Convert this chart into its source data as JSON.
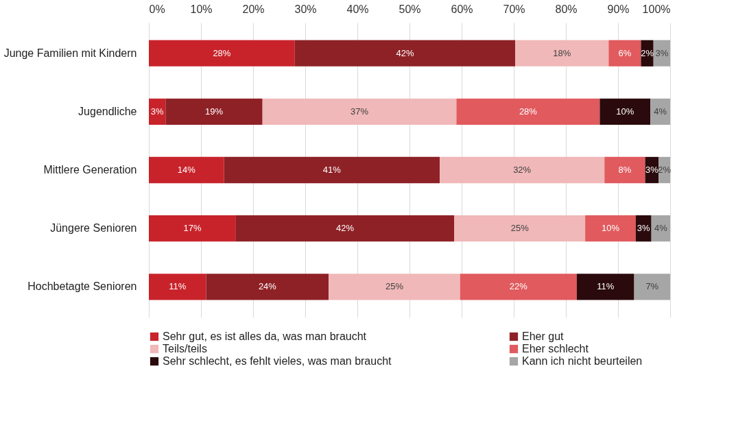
{
  "chart_data": {
    "type": "bar",
    "orientation": "horizontal",
    "stacked": true,
    "categories": [
      "Junge Familien mit Kindern",
      "Jugendliche",
      "Mittlere Generation",
      "Jüngere Senioren",
      "Hochbetagte Senioren"
    ],
    "series": [
      {
        "name": "Sehr gut, es ist alles da, was man braucht",
        "color": "#c8232b",
        "values": [
          28.0,
          3.2,
          14.4,
          16.7,
          11.0
        ],
        "value_labels": [
          "28%",
          "3%",
          "14%",
          "17%",
          "11%"
        ]
      },
      {
        "name": "Eher gut",
        "color": "#8e2126",
        "values": [
          42.3,
          18.6,
          41.4,
          41.9,
          23.5
        ],
        "value_labels": [
          "42%",
          "19%",
          "41%",
          "42%",
          "24%"
        ]
      },
      {
        "name": "Teils/teils",
        "color": "#f0b8b8",
        "values": [
          17.9,
          37.2,
          31.6,
          25.1,
          25.2
        ],
        "value_labels": [
          "18%",
          "37%",
          "32%",
          "25%",
          "25%"
        ]
      },
      {
        "name": "Eher schlecht",
        "color": "#e05a5e",
        "values": [
          6.2,
          27.5,
          7.8,
          9.7,
          22.4
        ],
        "value_labels": [
          "6%",
          "28%",
          "8%",
          "10%",
          "22%"
        ]
      },
      {
        "name": "Sehr schlecht, es fehlt vieles, was man braucht",
        "color": "#2a0a0c",
        "values": [
          2.4,
          9.7,
          2.6,
          3.0,
          11.0
        ],
        "value_labels": [
          "2%",
          "10%",
          "3%",
          "3%",
          "11%"
        ]
      },
      {
        "name": "Kann ich nicht beurteilen",
        "color": "#a6a6a6",
        "values": [
          3.2,
          3.8,
          2.2,
          3.6,
          6.9
        ],
        "value_labels": [
          "3%",
          "4%",
          "2%",
          "4%",
          "7%"
        ]
      }
    ],
    "xlim": [
      0,
      100
    ],
    "xticks": [
      {
        "value": 0,
        "label": "0%"
      },
      {
        "value": 10,
        "label": "10%"
      },
      {
        "value": 20,
        "label": "20%"
      },
      {
        "value": 30,
        "label": "30%"
      },
      {
        "value": 40,
        "label": "40%"
      },
      {
        "value": 50,
        "label": "50%"
      },
      {
        "value": 60,
        "label": "60%"
      },
      {
        "value": 70,
        "label": "70%"
      },
      {
        "value": 80,
        "label": "80%"
      },
      {
        "value": 90,
        "label": "90%"
      },
      {
        "value": 100,
        "label": "100%"
      }
    ],
    "grid": "x",
    "legend": "bottom"
  }
}
